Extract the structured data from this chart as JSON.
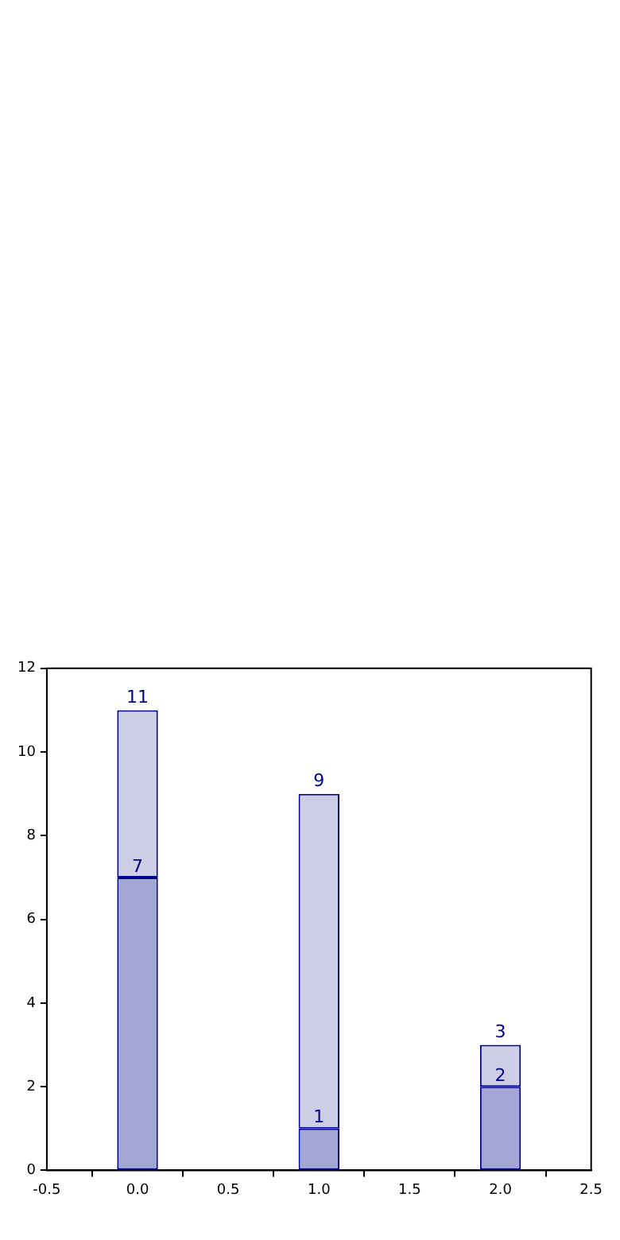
{
  "chart_data": {
    "type": "bar",
    "x": [
      0,
      1,
      2
    ],
    "stacked": true,
    "series": [
      {
        "color": "#a3a5d3",
        "values": [
          7,
          1,
          2
        ],
        "value_labels": [
          "7",
          "1",
          "2"
        ]
      },
      {
        "color": "#cdcde6",
        "values": [
          4,
          8,
          1
        ]
      }
    ],
    "totals": [
      "11",
      "9",
      "3"
    ],
    "xlim": [
      -0.5,
      2.5
    ],
    "xticks": [
      -0.5,
      {
        "value": 0,
        "label": "0.0"
      },
      0.5,
      {
        "value": 1,
        "label": "1.0"
      },
      1.5,
      {
        "value": 2,
        "label": "2.0"
      },
      2.5
    ],
    "ylim": [
      0,
      12
    ],
    "yticks": [
      0,
      2,
      4,
      6,
      8,
      10,
      12
    ],
    "grid": false,
    "legend": false
  }
}
